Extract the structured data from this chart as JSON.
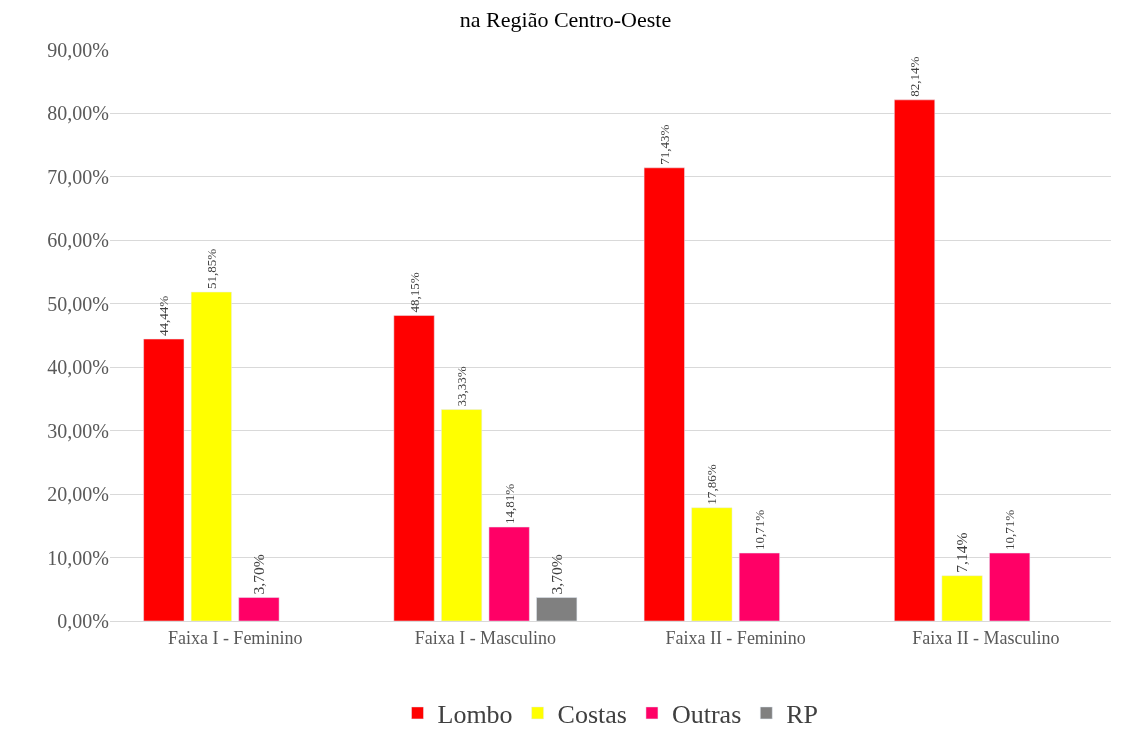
{
  "chart_data": {
    "type": "bar",
    "title": "na Região Centro-Oeste",
    "categories": [
      "Faixa I - Feminino",
      "Faixa I - Masculino",
      "Faixa II - Feminino",
      "Faixa II - Masculino"
    ],
    "series": [
      {
        "name": "Lombo",
        "color": "#ff0000",
        "values": [
          44.44,
          48.15,
          71.43,
          82.14
        ],
        "value_labels": [
          "44,44%",
          "48,15%",
          "71,43%",
          "82,14%"
        ]
      },
      {
        "name": "Costas",
        "color": "#ffff00",
        "values": [
          51.85,
          33.33,
          17.86,
          7.14
        ],
        "value_labels": [
          "51,85%",
          "33,33%",
          "17,86%",
          "7,14%"
        ]
      },
      {
        "name": "Outras",
        "color": "#ff0066",
        "values": [
          3.7,
          14.81,
          10.71,
          10.71
        ],
        "value_labels": [
          "3,70%",
          "14,81%",
          "10,71%",
          "10,71%"
        ]
      },
      {
        "name": "RP",
        "color": "#808080",
        "values": [
          null,
          3.7,
          null,
          null
        ],
        "value_labels": [
          null,
          "3,70%",
          null,
          null
        ]
      }
    ],
    "ylim": [
      0,
      90
    ],
    "yticks": [
      {
        "value": 0,
        "label": "0,00%"
      },
      {
        "value": 10,
        "label": "10,00%"
      },
      {
        "value": 20,
        "label": "20,00%"
      },
      {
        "value": 30,
        "label": "30,00%"
      },
      {
        "value": 40,
        "label": "40,00%"
      },
      {
        "value": 50,
        "label": "50,00%"
      },
      {
        "value": 60,
        "label": "60,00%"
      },
      {
        "value": 70,
        "label": "70,00%"
      },
      {
        "value": 80,
        "label": "80,00%"
      },
      {
        "value": 90,
        "label": "90,00%"
      }
    ],
    "grid": "y",
    "legend": "bottom"
  }
}
